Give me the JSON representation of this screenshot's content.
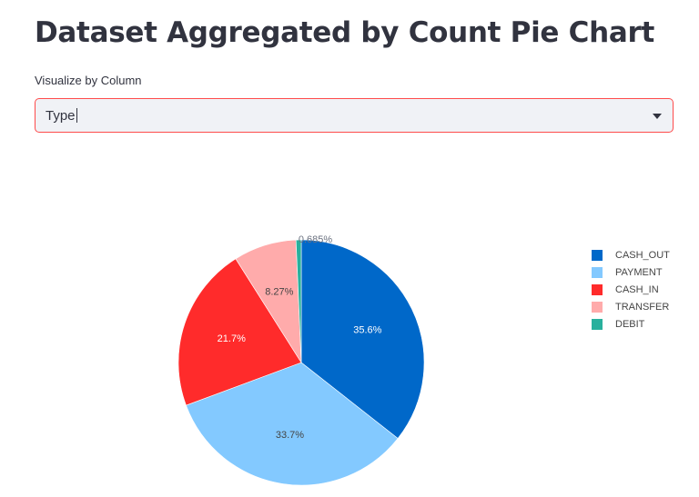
{
  "page": {
    "title": "Dataset Aggregated by Count Pie Chart"
  },
  "select": {
    "label": "Visualize by Column",
    "value": "Type",
    "icon": "chevron-down-icon",
    "border_color": "#ff4b4b"
  },
  "chart_data": {
    "type": "pie",
    "title": "",
    "categories": [
      "CASH_OUT",
      "PAYMENT",
      "CASH_IN",
      "TRANSFER",
      "DEBIT"
    ],
    "values": [
      35.6,
      33.7,
      21.7,
      8.27,
      0.685
    ],
    "labels": [
      "35.6%",
      "33.7%",
      "21.7%",
      "8.27%",
      "0.685%"
    ],
    "colors": [
      "#0068c9",
      "#83c9ff",
      "#ff2b2b",
      "#ffabab",
      "#29b09d"
    ],
    "sort": "descending",
    "direction": "clockwise",
    "start_angle": "top",
    "legend": "right"
  }
}
